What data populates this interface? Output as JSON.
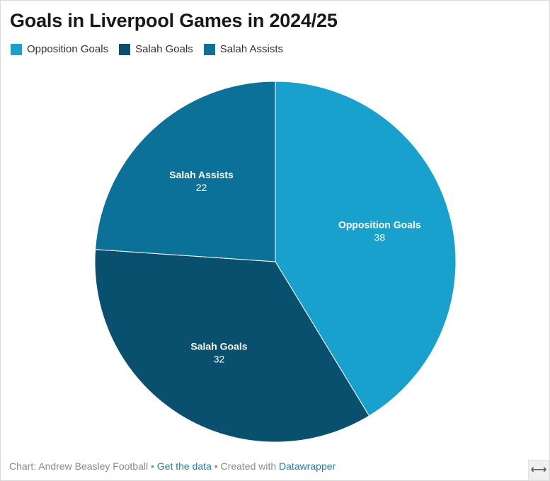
{
  "title": "Goals in Liverpool Games in 2024/25",
  "legend": [
    {
      "label": "Opposition Goals",
      "color": "#18a1cd"
    },
    {
      "label": "Salah Goals",
      "color": "#09506e"
    },
    {
      "label": "Salah Assists",
      "color": "#0b7199"
    }
  ],
  "chart_data": {
    "type": "pie",
    "title": "Goals in Liverpool Games in 2024/25",
    "slices": [
      {
        "label": "Opposition Goals",
        "value": 38,
        "color": "#18a1cd"
      },
      {
        "label": "Salah Goals",
        "value": 32,
        "color": "#09506e"
      },
      {
        "label": "Salah Assists",
        "value": 22,
        "color": "#0b7199"
      }
    ],
    "start_angle_deg": 0,
    "direction": "clockwise",
    "legend_position": "top-left"
  },
  "footer": {
    "prefix": "Chart: Andrew Beasley Football",
    "separator": "•",
    "get_data_link": "Get the data",
    "created_with": "Created with",
    "datawrapper_link": "Datawrapper"
  },
  "resize_icon": "resize-horizontal-icon",
  "resize_glyph": "⟷"
}
